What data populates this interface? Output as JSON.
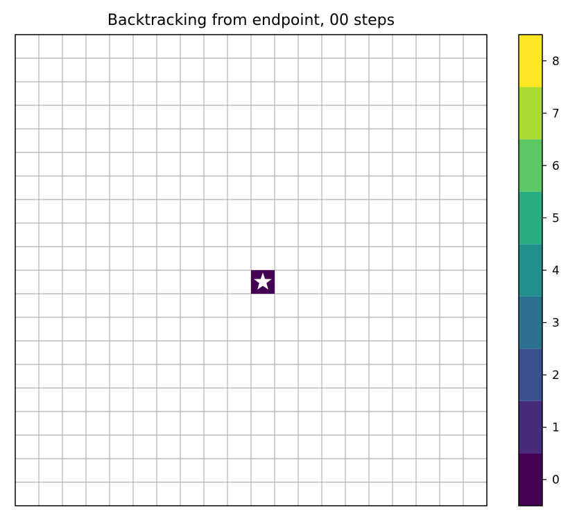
{
  "chart_data": {
    "type": "heatmap",
    "title": "Backtracking from endpoint, 00 steps",
    "grid": true,
    "grid_size": {
      "rows": 20,
      "cols": 20
    },
    "axes_ticks": "hidden",
    "cells": [
      {
        "row": 10,
        "col": 10,
        "value": 0,
        "marker": "star"
      }
    ],
    "colorbar": {
      "placement": "right",
      "min": -0.5,
      "max": 8.5,
      "ticks": [
        "0",
        "1",
        "2",
        "3",
        "4",
        "5",
        "6",
        "7",
        "8"
      ],
      "colors": [
        "#440154",
        "#472c7a",
        "#3b518b",
        "#2c718e",
        "#21908d",
        "#27ad81",
        "#5cc863",
        "#aadc32",
        "#fde725"
      ]
    },
    "colors": {
      "grid_line": "#b0b0b0",
      "frame": "#000000",
      "marker": "#ffffff"
    }
  }
}
